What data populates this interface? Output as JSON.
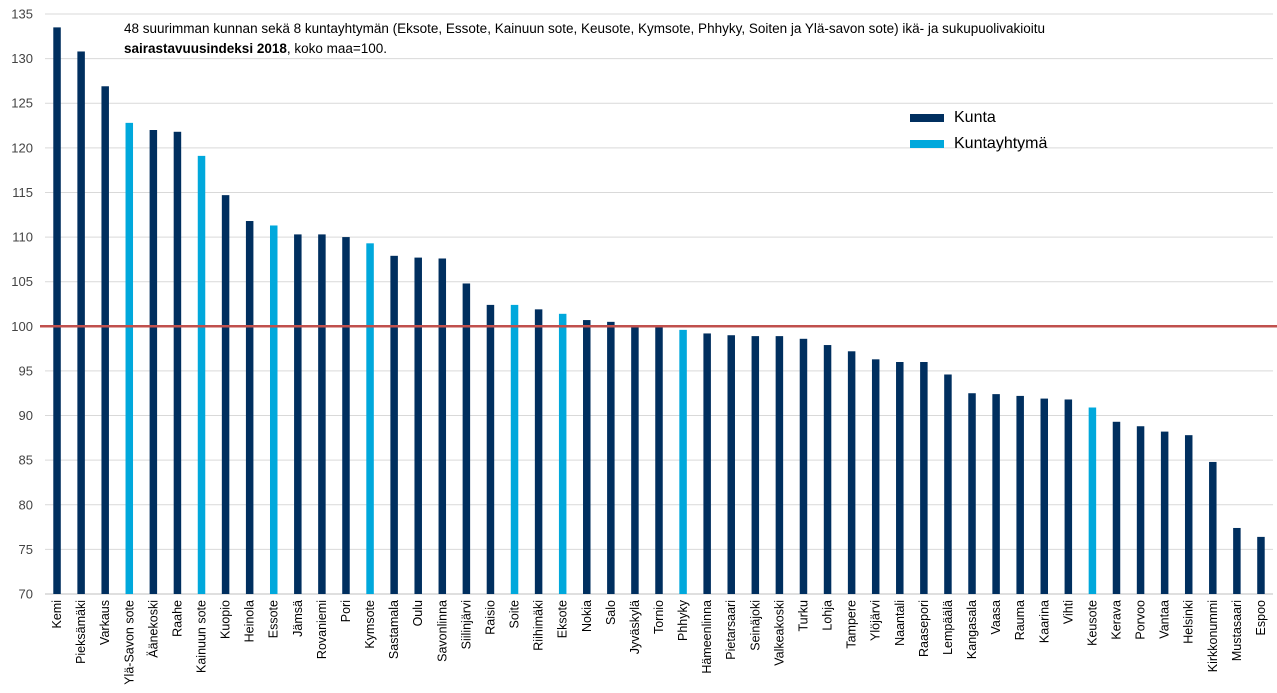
{
  "chart_data": {
    "type": "bar",
    "title_line1": "48 suurimman kunnan sekä 8 kuntayhtymän (Eksote, Essote, Kainuun sote, Keusote, Kymsote, Phhyky, Soiten ja Ylä-savon sote) ikä- ja sukupuolivakioitu",
    "title_line2_bold": "sairastavuusindeksi 2018",
    "title_line2_rest": ", koko maa=100.",
    "ylim": [
      70,
      135
    ],
    "yticks": [
      70,
      75,
      80,
      85,
      90,
      95,
      100,
      105,
      110,
      115,
      120,
      125,
      130,
      135
    ],
    "reference_line": 100,
    "reference_color": "#C0504D",
    "legend": [
      {
        "label": "Kunta",
        "color": "#002F5F"
      },
      {
        "label": "Kuntayhtymä",
        "color": "#00A8DC"
      }
    ],
    "categories": [
      "Kemi",
      "Pieksämäki",
      "Varkaus",
      "Ylä-Savon sote",
      "Äänekoski",
      "Raahe",
      "Kainuun sote",
      "Kuopio",
      "Heinola",
      "Essote",
      "Jämsä",
      "Rovaniemi",
      "Pori",
      "Kymsote",
      "Sastamala",
      "Oulu",
      "Savonlinna",
      "Siilinjärvi",
      "Raisio",
      "Soite",
      "Riihimäki",
      "Eksote",
      "Nokia",
      "Salo",
      "Jyväskylä",
      "Tornio",
      "Phhyky",
      "Hämeenlinna",
      "Pietarsaari",
      "Seinäjoki",
      "Valkeakoski",
      "Turku",
      "Lohja",
      "Tampere",
      "Ylöjärvi",
      "Naantali",
      "Raasepori",
      "Lempäälä",
      "Kangasala",
      "Vaasa",
      "Rauma",
      "Kaarina",
      "Vihti",
      "Keusote",
      "Kerava",
      "Porvoo",
      "Vantaa",
      "Helsinki",
      "Kirkkonummi",
      "Mustasaari",
      "Espoo"
    ],
    "values": [
      133.5,
      130.8,
      126.9,
      122.8,
      122.0,
      121.8,
      119.1,
      114.7,
      111.8,
      111.3,
      110.3,
      110.3,
      110.0,
      109.3,
      107.9,
      107.7,
      107.6,
      104.8,
      102.4,
      102.4,
      101.9,
      101.4,
      100.7,
      100.5,
      100.1,
      100.0,
      99.6,
      99.2,
      99.0,
      98.9,
      98.9,
      98.6,
      97.9,
      97.2,
      96.3,
      96.0,
      96.0,
      94.6,
      92.5,
      92.4,
      92.2,
      91.9,
      91.8,
      90.9,
      89.3,
      88.8,
      88.2,
      87.8,
      84.8,
      77.4,
      76.4
    ],
    "kinds": [
      "Kunta",
      "Kunta",
      "Kunta",
      "Kuntayhtymä",
      "Kunta",
      "Kunta",
      "Kuntayhtymä",
      "Kunta",
      "Kunta",
      "Kuntayhtymä",
      "Kunta",
      "Kunta",
      "Kunta",
      "Kuntayhtymä",
      "Kunta",
      "Kunta",
      "Kunta",
      "Kunta",
      "Kunta",
      "Kuntayhtymä",
      "Kunta",
      "Kuntayhtymä",
      "Kunta",
      "Kunta",
      "Kunta",
      "Kunta",
      "Kuntayhtymä",
      "Kunta",
      "Kunta",
      "Kunta",
      "Kunta",
      "Kunta",
      "Kunta",
      "Kunta",
      "Kunta",
      "Kunta",
      "Kunta",
      "Kunta",
      "Kunta",
      "Kunta",
      "Kunta",
      "Kunta",
      "Kunta",
      "Kuntayhtymä",
      "Kunta",
      "Kunta",
      "Kunta",
      "Kunta",
      "Kunta",
      "Kunta",
      "Kunta"
    ],
    "grid": true
  }
}
